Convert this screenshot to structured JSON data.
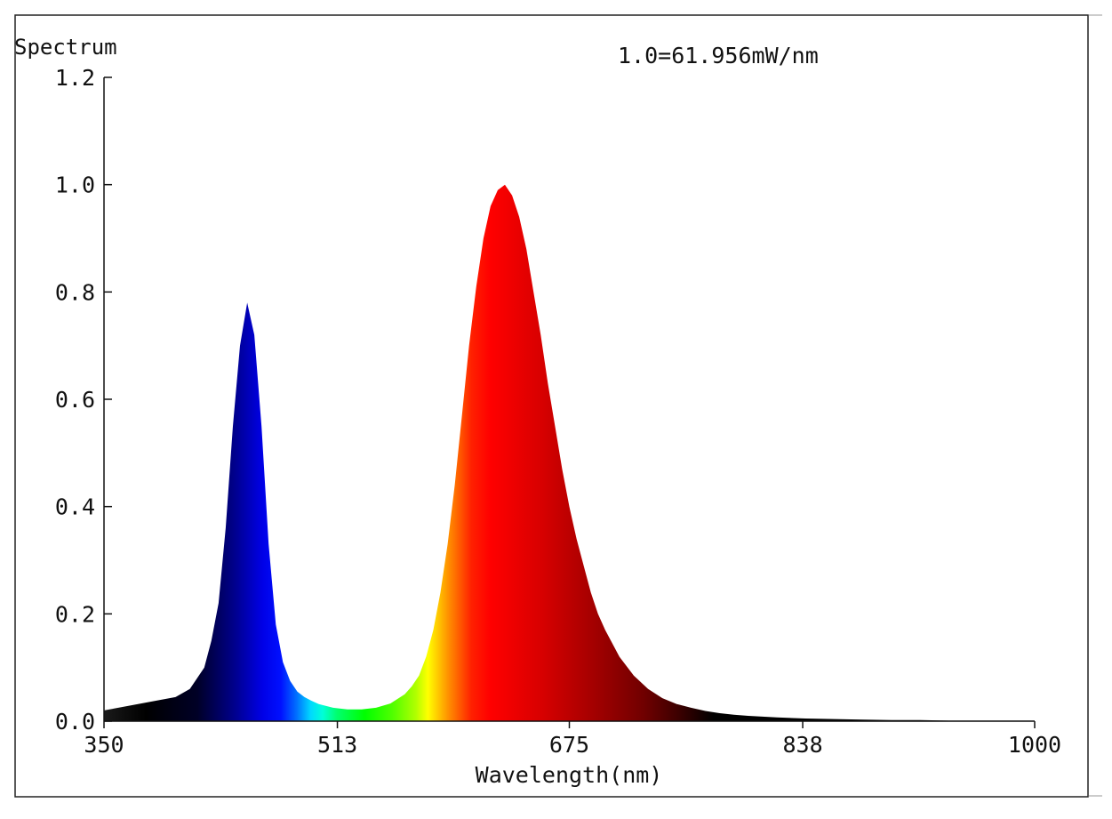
{
  "chart_data": {
    "type": "area",
    "ylabel": "Spectrum",
    "xlabel": "Wavelength(nm)",
    "annotation": "1.0=61.956mW/nm",
    "xlim": [
      350,
      1000
    ],
    "ylim": [
      0,
      1.2
    ],
    "x_ticks": [
      350,
      513,
      675,
      838,
      1000
    ],
    "x_tick_labels": [
      "350",
      "513",
      "675",
      "838",
      "1000"
    ],
    "y_ticks": [
      0,
      0.2,
      0.4,
      0.6,
      0.8,
      1.0,
      1.2
    ],
    "y_tick_labels": [
      "0.0",
      "0.2",
      "0.4",
      "0.6",
      "0.8",
      "1.0",
      "1.2"
    ],
    "grid": false,
    "fill": "wavelength-colored spectrum",
    "series": [
      {
        "x": [
          350,
          360,
          370,
          380,
          390,
          400,
          410,
          420,
          425,
          430,
          435,
          440,
          445,
          450,
          455,
          460,
          465,
          470,
          475,
          480,
          485,
          490,
          495,
          500,
          510,
          520,
          530,
          540,
          550,
          560,
          565,
          570,
          575,
          580,
          585,
          590,
          595,
          600,
          605,
          610,
          615,
          620,
          625,
          630,
          635,
          640,
          645,
          650,
          655,
          660,
          665,
          670,
          675,
          680,
          685,
          690,
          695,
          700,
          710,
          720,
          730,
          740,
          750,
          760,
          770,
          780,
          790,
          800,
          820,
          840,
          860,
          880,
          900,
          920,
          940,
          960,
          980,
          1000
        ],
        "y": [
          0.02,
          0.025,
          0.03,
          0.035,
          0.04,
          0.045,
          0.06,
          0.1,
          0.15,
          0.22,
          0.36,
          0.55,
          0.7,
          0.78,
          0.72,
          0.55,
          0.33,
          0.18,
          0.11,
          0.075,
          0.055,
          0.045,
          0.038,
          0.032,
          0.025,
          0.022,
          0.022,
          0.025,
          0.033,
          0.05,
          0.065,
          0.085,
          0.12,
          0.17,
          0.24,
          0.33,
          0.44,
          0.57,
          0.7,
          0.81,
          0.9,
          0.96,
          0.99,
          1.0,
          0.98,
          0.94,
          0.88,
          0.8,
          0.72,
          0.63,
          0.55,
          0.47,
          0.4,
          0.34,
          0.29,
          0.24,
          0.2,
          0.17,
          0.12,
          0.085,
          0.06,
          0.043,
          0.032,
          0.025,
          0.019,
          0.015,
          0.012,
          0.01,
          0.007,
          0.005,
          0.004,
          0.003,
          0.002,
          0.002,
          0.001,
          0.001,
          0.001,
          0.001
        ]
      }
    ]
  }
}
